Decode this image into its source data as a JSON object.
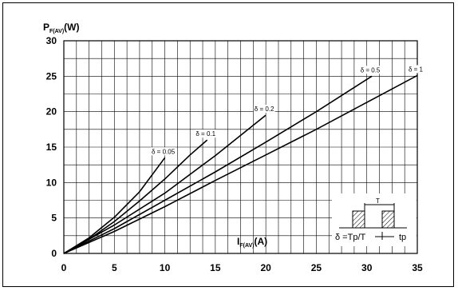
{
  "chart_data": {
    "type": "line",
    "y_axis": {
      "label_main": "P",
      "label_sub": "F(AV)",
      "label_unit": "(W)",
      "ylim": [
        0,
        30
      ],
      "ticks": [
        0,
        5,
        10,
        15,
        20,
        25,
        30
      ]
    },
    "x_axis": {
      "label_main": "I",
      "label_sub": "F(AV)",
      "label_unit": "(A)",
      "xlim": [
        0,
        35
      ],
      "ticks": [
        0,
        5,
        10,
        15,
        20,
        25,
        30,
        35
      ]
    },
    "grid": true,
    "series": [
      {
        "name": "δ = 0.05",
        "x": [
          0,
          2.5,
          5,
          7.5,
          10
        ],
        "y": [
          0,
          2.2,
          5.1,
          8.7,
          13.5
        ]
      },
      {
        "name": "δ = 0.1",
        "x": [
          0,
          2.5,
          5,
          7.5,
          10,
          12.5,
          14.2
        ],
        "y": [
          0,
          2,
          4.5,
          7.4,
          10.5,
          13.9,
          16
        ]
      },
      {
        "name": "δ = 0.2",
        "x": [
          0,
          5,
          10,
          15,
          20
        ],
        "y": [
          0,
          4,
          8.5,
          13.8,
          19.5
        ]
      },
      {
        "name": "δ = 0.5",
        "x": [
          0,
          5,
          10,
          15,
          20,
          25,
          30.5
        ],
        "y": [
          0,
          3.5,
          7.5,
          11.5,
          15.7,
          20,
          25
        ]
      },
      {
        "name": "δ = 1",
        "x": [
          0,
          5,
          10,
          15,
          20,
          25,
          30,
          35
        ],
        "y": [
          0,
          3.1,
          6.6,
          10.3,
          13.9,
          17.5,
          21.3,
          25.1
        ]
      }
    ],
    "inset": {
      "period_label": "T",
      "formula": "δ =Tp/T",
      "pulse_label": "tp"
    }
  }
}
